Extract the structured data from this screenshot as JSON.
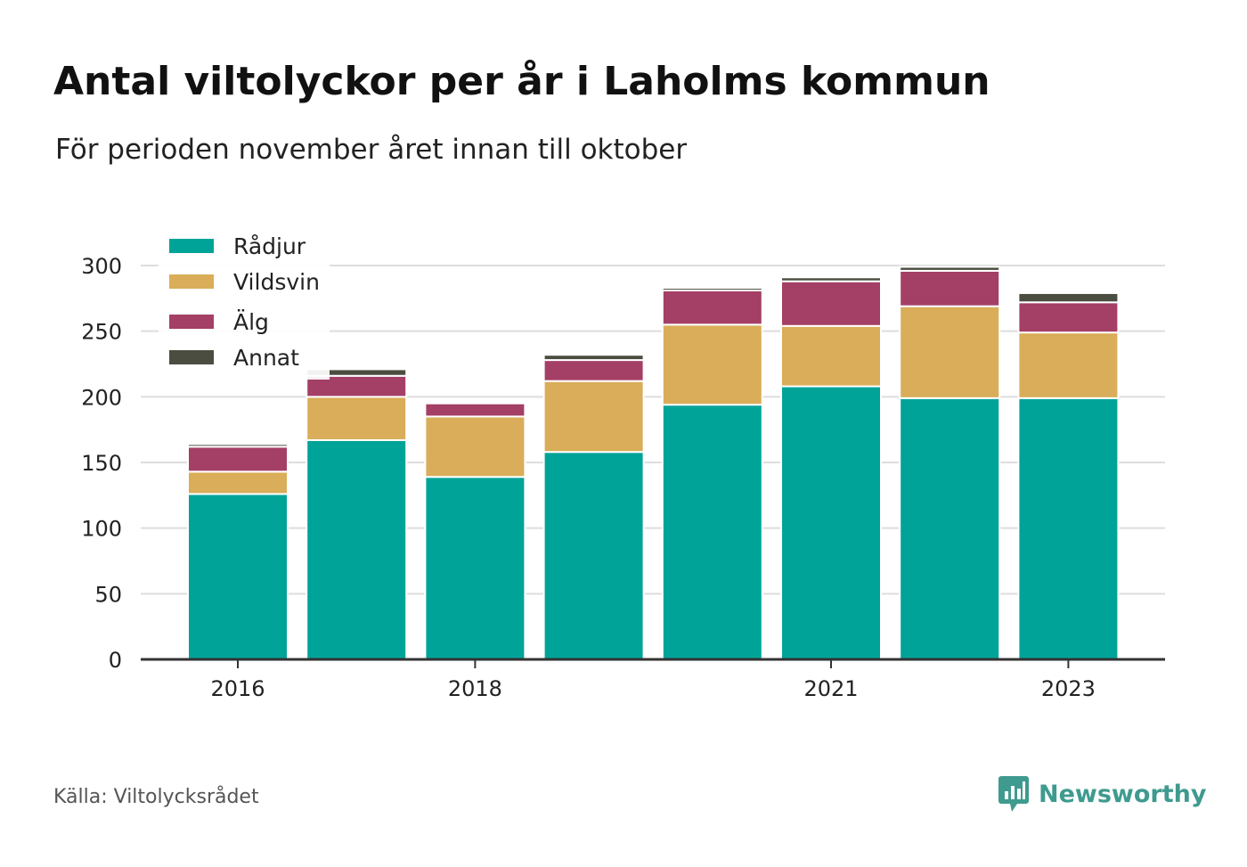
{
  "title": "Antal viltolyckor per år i Laholms kommun",
  "subtitle": "För perioden november året innan till oktober",
  "source": "Källa: Viltolycksrådet",
  "brand": {
    "name": "Newsworthy",
    "icon": "newsworthy-chart-bubble-icon",
    "color": "#3f9a8f"
  },
  "chart_data": {
    "type": "bar",
    "stacked": true,
    "categories": [
      "2016",
      "2017",
      "2018",
      "2019",
      "2020",
      "2021",
      "2022",
      "2023"
    ],
    "x_tick_labels": [
      "2016",
      "",
      "2018",
      "",
      "",
      "2021",
      "",
      "2023"
    ],
    "series": [
      {
        "name": "Rådjur",
        "color": "#00a398",
        "values": [
          126,
          167,
          139,
          158,
          194,
          208,
          199,
          199
        ]
      },
      {
        "name": "Vildsvin",
        "color": "#d9ad59",
        "values": [
          17,
          33,
          46,
          54,
          61,
          46,
          70,
          50
        ]
      },
      {
        "name": "Älg",
        "color": "#a43f66",
        "values": [
          19,
          16,
          10,
          16,
          26,
          34,
          27,
          23
        ]
      },
      {
        "name": "Annat",
        "color": "#4b4d40",
        "values": [
          2,
          5,
          0,
          4,
          2,
          3,
          3,
          7
        ]
      }
    ],
    "y_ticks": [
      0,
      50,
      100,
      150,
      200,
      250,
      300
    ],
    "ylim": [
      0,
      300
    ],
    "grid": true,
    "legend_position": "top-left",
    "xlabel": "",
    "ylabel": ""
  }
}
